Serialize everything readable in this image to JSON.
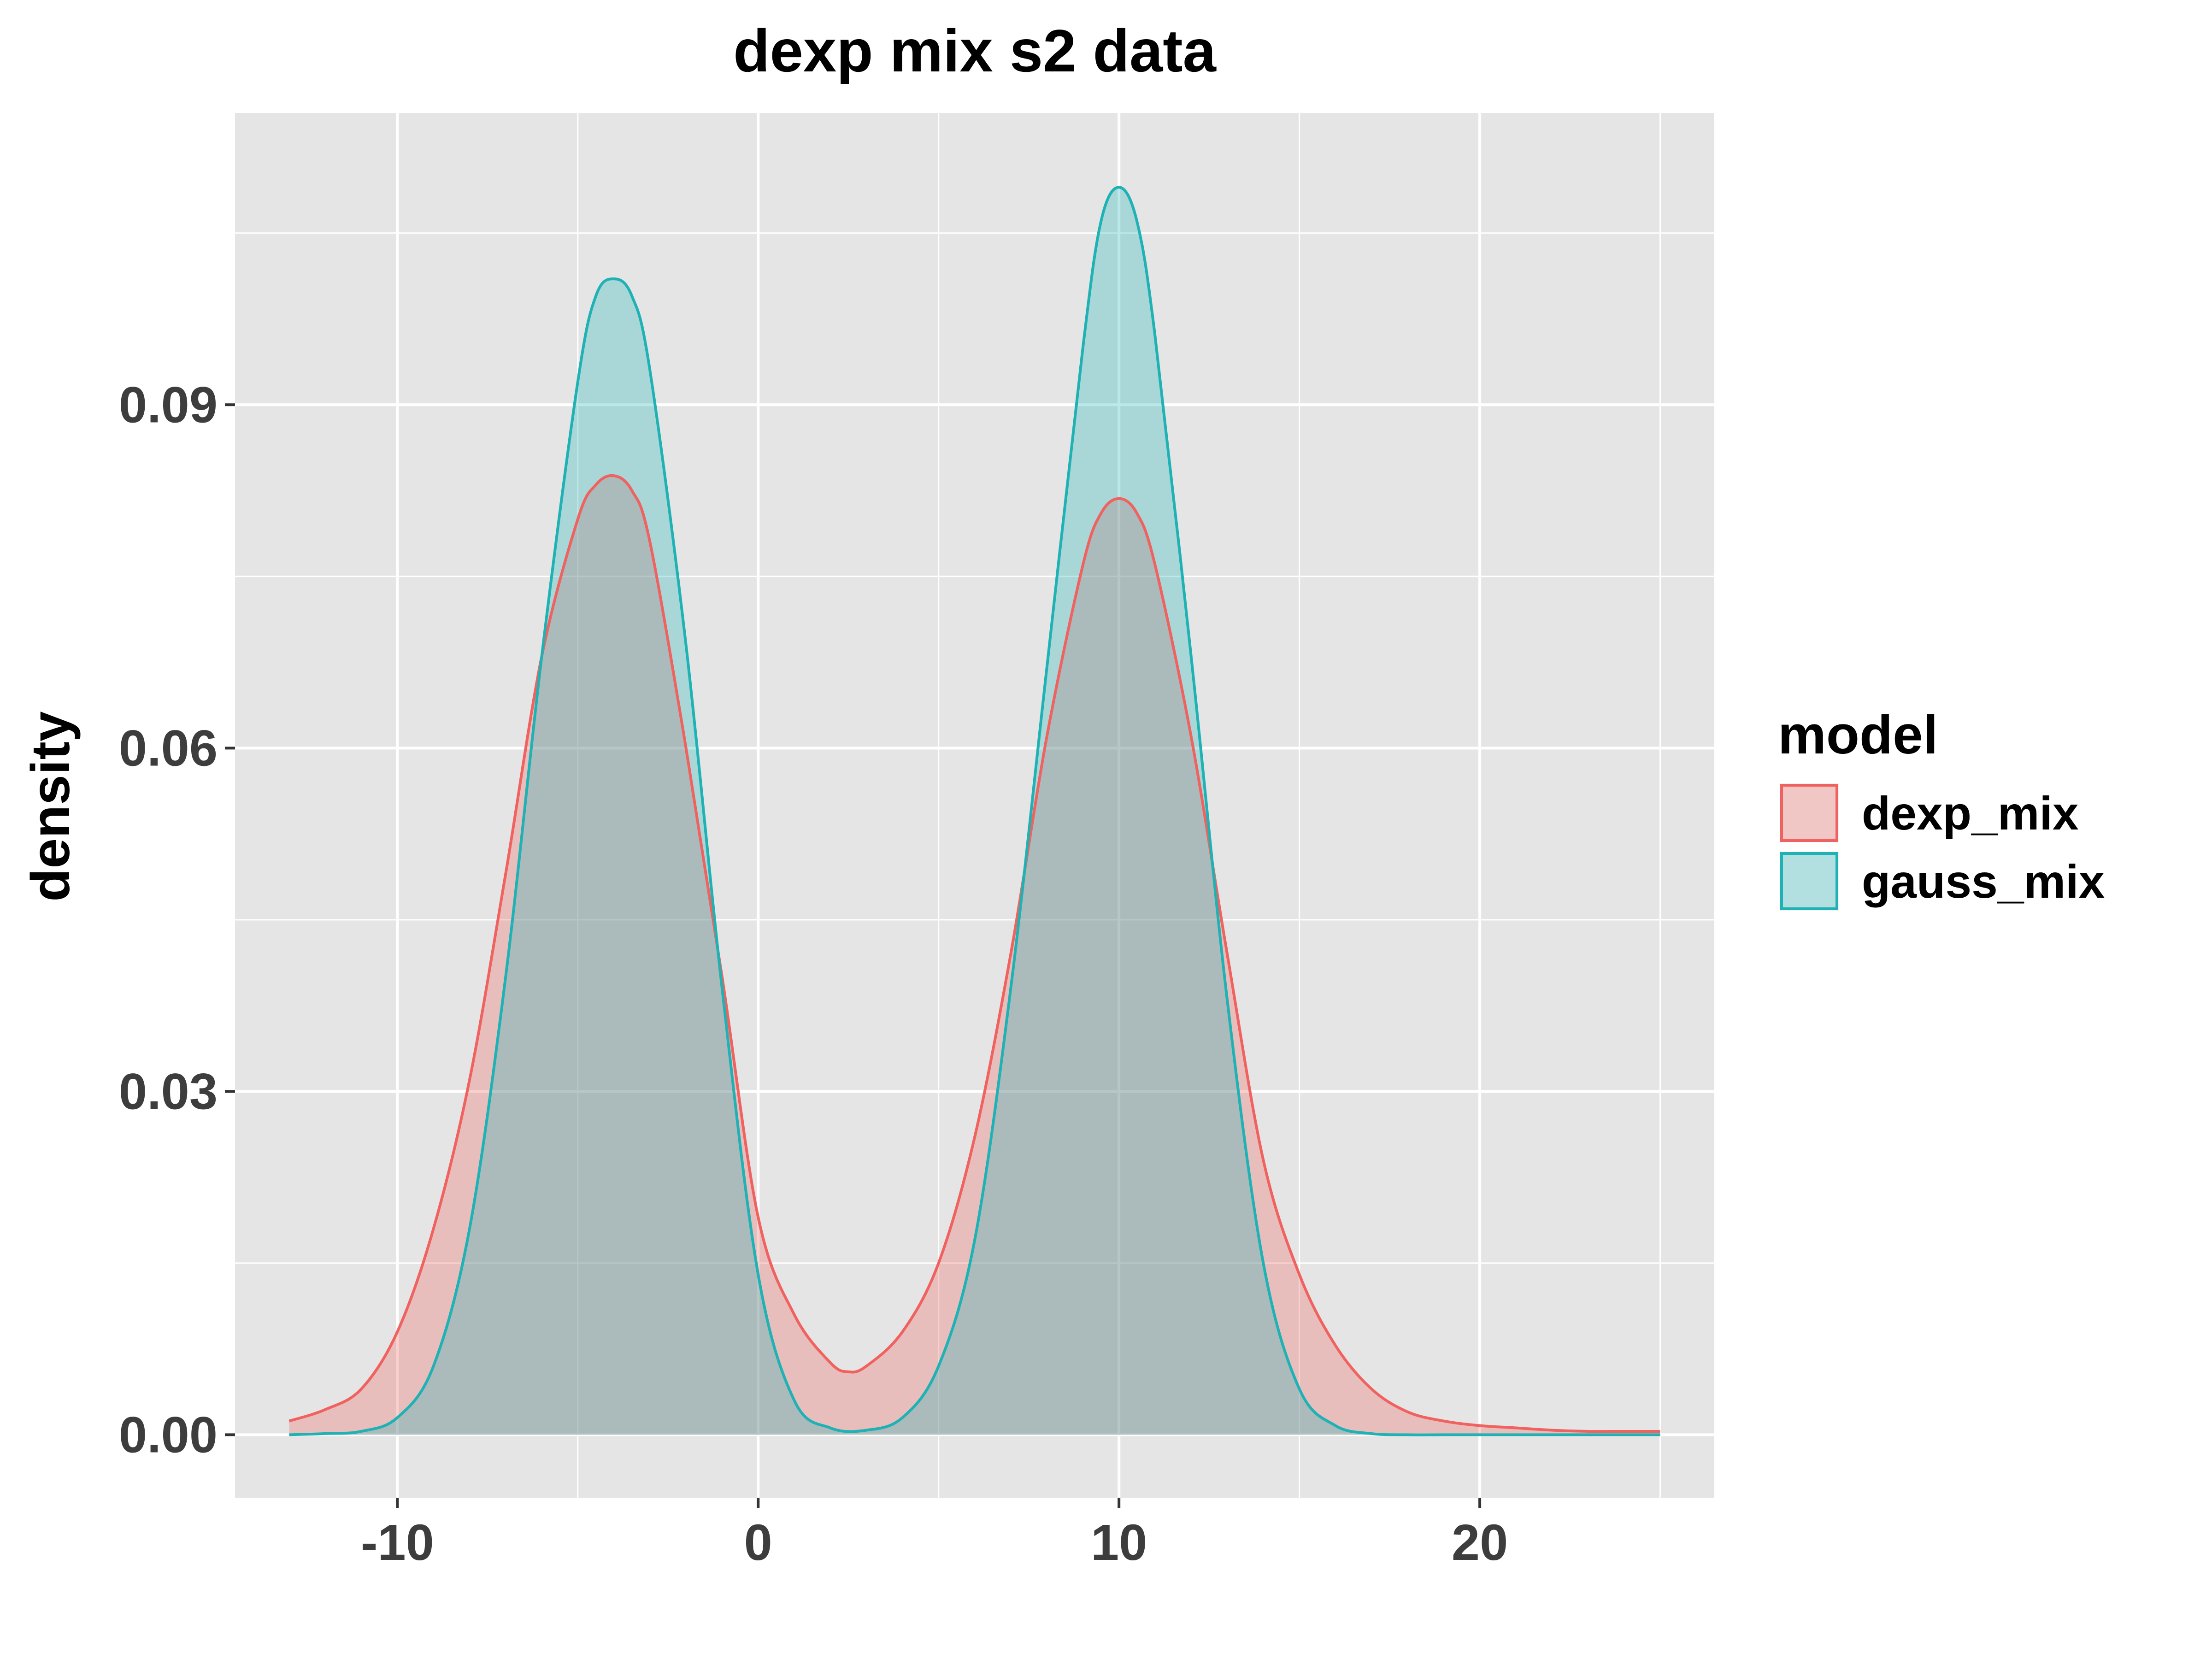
{
  "chart_data": {
    "type": "area",
    "title": "dexp mix s2 data",
    "xlabel": "",
    "ylabel": "density",
    "xlim": [
      -14.5,
      26.5
    ],
    "ylim": [
      -0.0055,
      0.1155
    ],
    "x_ticks": [
      -10,
      0,
      10,
      20
    ],
    "x_tick_labels": [
      "-10",
      "0",
      "10",
      "20"
    ],
    "y_ticks": [
      0.0,
      0.03,
      0.06,
      0.09
    ],
    "y_tick_labels": [
      "0.00",
      "0.03",
      "0.06",
      "0.09"
    ],
    "x_minor_ticks": [
      -5,
      5,
      15,
      25
    ],
    "y_minor_ticks": [
      0.015,
      0.045,
      0.075,
      0.105
    ],
    "grid": true,
    "panel_background": "#e5e5e5",
    "legend": {
      "title": "model",
      "position": "right",
      "entries": [
        "dexp_mix",
        "gauss_mix"
      ]
    },
    "series": [
      {
        "name": "dexp_mix",
        "color": "#f0625f",
        "fill": "#f0625f",
        "fill_opacity": 0.3,
        "x": [
          -13,
          -12,
          -11,
          -10,
          -9,
          -8,
          -7,
          -6,
          -5,
          -4.5,
          -4,
          -3.5,
          -3,
          -2,
          -1,
          0,
          1,
          2,
          2.5,
          3,
          4,
          5,
          6,
          7,
          8,
          9,
          9.5,
          10,
          10.5,
          11,
          12,
          13,
          14,
          15,
          16,
          17,
          18,
          19,
          20,
          21,
          22,
          23,
          24,
          25
        ],
        "y": [
          0.0012,
          0.0022,
          0.004,
          0.009,
          0.018,
          0.031,
          0.049,
          0.068,
          0.08,
          0.083,
          0.0838,
          0.0825,
          0.078,
          0.06,
          0.04,
          0.019,
          0.0105,
          0.0063,
          0.0055,
          0.006,
          0.009,
          0.015,
          0.026,
          0.042,
          0.061,
          0.076,
          0.0805,
          0.0818,
          0.0805,
          0.076,
          0.061,
          0.042,
          0.024,
          0.014,
          0.0078,
          0.004,
          0.002,
          0.0012,
          0.0008,
          0.0006,
          0.0004,
          0.0003,
          0.0003,
          0.0003
        ]
      },
      {
        "name": "gauss_mix",
        "color": "#1fb2b5",
        "fill": "#1fb2b5",
        "fill_opacity": 0.3,
        "x": [
          -13,
          -12,
          -11,
          -10,
          -9,
          -8,
          -7,
          -6,
          -5,
          -4.5,
          -4,
          -3.5,
          -3,
          -2,
          -1,
          0,
          1,
          2,
          3,
          4,
          5,
          6,
          7,
          8,
          9,
          9.5,
          10,
          10.5,
          11,
          12,
          13,
          14,
          15,
          16,
          17,
          18,
          19,
          20,
          21,
          22,
          23,
          24,
          25
        ],
        "y": [
          0.0,
          0.0001,
          0.0003,
          0.0015,
          0.006,
          0.018,
          0.04,
          0.068,
          0.092,
          0.0995,
          0.101,
          0.0995,
          0.093,
          0.069,
          0.039,
          0.014,
          0.003,
          0.0006,
          0.0004,
          0.0015,
          0.006,
          0.017,
          0.039,
          0.067,
          0.095,
          0.106,
          0.109,
          0.106,
          0.096,
          0.068,
          0.038,
          0.015,
          0.004,
          0.0008,
          0.0001,
          0.0,
          0.0,
          0.0,
          0.0,
          0.0,
          0.0,
          0.0,
          0.0
        ]
      }
    ]
  }
}
